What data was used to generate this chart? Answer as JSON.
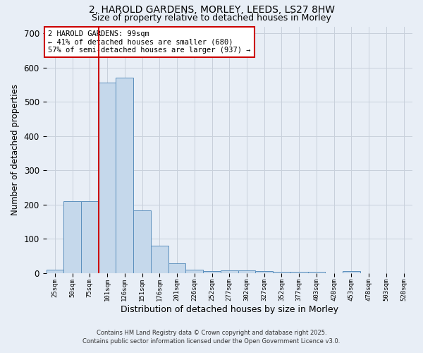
{
  "title_line1": "2, HAROLD GARDENS, MORLEY, LEEDS, LS27 8HW",
  "title_line2": "Size of property relative to detached houses in Morley",
  "xlabel": "Distribution of detached houses by size in Morley",
  "ylabel": "Number of detached properties",
  "bin_labels": [
    "25sqm",
    "50sqm",
    "75sqm",
    "101sqm",
    "126sqm",
    "151sqm",
    "176sqm",
    "201sqm",
    "226sqm",
    "252sqm",
    "277sqm",
    "302sqm",
    "327sqm",
    "352sqm",
    "377sqm",
    "403sqm",
    "428sqm",
    "453sqm",
    "478sqm",
    "503sqm",
    "528sqm"
  ],
  "bar_values": [
    10,
    210,
    210,
    557,
    570,
    183,
    80,
    27,
    10,
    6,
    8,
    8,
    5,
    3,
    3,
    3,
    0,
    5,
    0,
    0,
    0
  ],
  "bar_color": "#c5d8eb",
  "bar_edge_color": "#5b8fbd",
  "grid_color": "#c8d0db",
  "background_color": "#e8eef6",
  "red_line_color": "#cc0000",
  "red_line_index": 2.5,
  "annotation_text": "2 HAROLD GARDENS: 99sqm\n← 41% of detached houses are smaller (680)\n57% of semi-detached houses are larger (937) →",
  "annotation_box_facecolor": "#ffffff",
  "annotation_box_edgecolor": "#cc0000",
  "footer_line1": "Contains HM Land Registry data © Crown copyright and database right 2025.",
  "footer_line2": "Contains public sector information licensed under the Open Government Licence v3.0.",
  "ylim": [
    0,
    720
  ],
  "yticks": [
    0,
    100,
    200,
    300,
    400,
    500,
    600,
    700
  ]
}
